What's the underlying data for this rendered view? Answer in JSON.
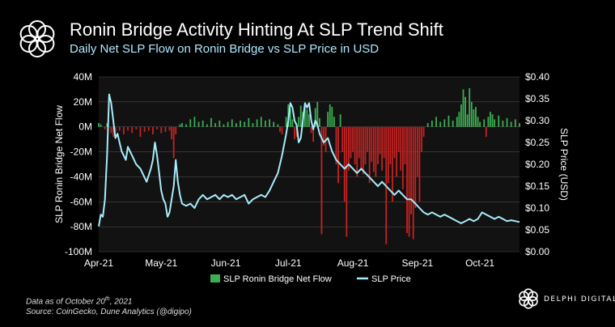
{
  "header": {
    "title": "Ronin Bridge Activity Hinting At SLP Trend Shift",
    "subtitle": "Daily Net SLP Flow on Ronin Bridge vs SLP Price in USD"
  },
  "footer": {
    "note_prefix": "Data as of October 20",
    "note_sup": "th",
    "note_suffix": ", 2021",
    "source": "Source: CoinGecko, Dune Analytics (@digipo)"
  },
  "brand": {
    "name": "DELPHI DIGITAL",
    "logo_icon": "flower-logo-icon"
  },
  "colors": {
    "background": "#000000",
    "inflow": "#3cae52",
    "outflow": "#c62222",
    "price": "#a8ecfa",
    "grid": "#4a4a4a",
    "plot_bg": "#121212",
    "subtitle": "#aee9ff"
  },
  "chart_data": {
    "type": "bar+line",
    "x_ticks": [
      "Apr-21",
      "May-21",
      "Jun-21",
      "Jul-21",
      "Aug-21",
      "Sep-21",
      "Oct-21"
    ],
    "x_range": [
      "2021-04-01",
      "2021-10-20"
    ],
    "y_left": {
      "label": "SLP Ronin Bridge Net Flow",
      "ticks": [
        "40M",
        "20M",
        "0M",
        "-20M",
        "-40M",
        "-60M",
        "-80M",
        "-100M"
      ],
      "range": [
        -100,
        40
      ],
      "unit": "M"
    },
    "y_right": {
      "label": "SLP Price (USD)",
      "ticks": [
        "$0.40",
        "$0.35",
        "$0.30",
        "$0.25",
        "$0.20",
        "$0.15",
        "$0.10",
        "$0.05",
        "$0.00"
      ],
      "range": [
        0,
        0.4
      ]
    },
    "legend": {
      "position": "bottom-center",
      "bar_label": "SLP Ronin Bridge Net Flow",
      "line_label": "SLP Price"
    },
    "series": [
      {
        "name": "SLP Ronin Bridge Net Flow",
        "type": "bar",
        "axis": "left",
        "points": [
          [
            "2021-04-01",
            3
          ],
          [
            "2021-04-02",
            2
          ],
          [
            "2021-04-04",
            -2
          ],
          [
            "2021-04-05",
            3
          ],
          [
            "2021-04-07",
            -5
          ],
          [
            "2021-04-08",
            -8
          ],
          [
            "2021-04-09",
            -4
          ],
          [
            "2021-04-11",
            -3
          ],
          [
            "2021-04-13",
            -6
          ],
          [
            "2021-04-15",
            -3
          ],
          [
            "2021-04-17",
            -5
          ],
          [
            "2021-04-19",
            -2
          ],
          [
            "2021-04-21",
            -8
          ],
          [
            "2021-04-23",
            -4
          ],
          [
            "2021-04-25",
            -3
          ],
          [
            "2021-04-27",
            -6
          ],
          [
            "2021-04-29",
            -2
          ],
          [
            "2021-05-01",
            -5
          ],
          [
            "2021-05-03",
            -4
          ],
          [
            "2021-05-05",
            -3
          ],
          [
            "2021-05-06",
            -10
          ],
          [
            "2021-05-07",
            -25
          ],
          [
            "2021-05-08",
            -6
          ],
          [
            "2021-05-10",
            2
          ],
          [
            "2021-05-11",
            3
          ],
          [
            "2021-05-13",
            2
          ],
          [
            "2021-05-15",
            6
          ],
          [
            "2021-05-17",
            8
          ],
          [
            "2021-05-19",
            4
          ],
          [
            "2021-05-21",
            5
          ],
          [
            "2021-05-23",
            2
          ],
          [
            "2021-05-25",
            7
          ],
          [
            "2021-05-27",
            3
          ],
          [
            "2021-05-29",
            5
          ],
          [
            "2021-05-31",
            2
          ],
          [
            "2021-06-02",
            4
          ],
          [
            "2021-06-04",
            6
          ],
          [
            "2021-06-06",
            3
          ],
          [
            "2021-06-08",
            5
          ],
          [
            "2021-06-10",
            4
          ],
          [
            "2021-06-12",
            7
          ],
          [
            "2021-06-14",
            3
          ],
          [
            "2021-06-16",
            6
          ],
          [
            "2021-06-18",
            8
          ],
          [
            "2021-06-20",
            5
          ],
          [
            "2021-06-22",
            6
          ],
          [
            "2021-06-24",
            4
          ],
          [
            "2021-06-26",
            2
          ],
          [
            "2021-06-27",
            -4
          ],
          [
            "2021-06-28",
            -6
          ],
          [
            "2021-06-30",
            8
          ],
          [
            "2021-07-01",
            18
          ],
          [
            "2021-07-02",
            14
          ],
          [
            "2021-07-03",
            6
          ],
          [
            "2021-07-04",
            -10
          ],
          [
            "2021-07-05",
            -8
          ],
          [
            "2021-07-06",
            8
          ],
          [
            "2021-07-07",
            17
          ],
          [
            "2021-07-08",
            12
          ],
          [
            "2021-07-09",
            19
          ],
          [
            "2021-07-10",
            14
          ],
          [
            "2021-07-11",
            10
          ],
          [
            "2021-07-12",
            -5
          ],
          [
            "2021-07-13",
            -12
          ],
          [
            "2021-07-14",
            15
          ],
          [
            "2021-07-15",
            20
          ],
          [
            "2021-07-16",
            7
          ],
          [
            "2021-07-17",
            -86
          ],
          [
            "2021-07-18",
            -15
          ],
          [
            "2021-07-19",
            -20
          ],
          [
            "2021-07-20",
            12
          ],
          [
            "2021-07-21",
            18
          ],
          [
            "2021-07-22",
            16
          ],
          [
            "2021-07-23",
            8
          ],
          [
            "2021-07-24",
            -30
          ],
          [
            "2021-07-25",
            -45
          ],
          [
            "2021-07-26",
            10
          ],
          [
            "2021-07-27",
            -20
          ],
          [
            "2021-07-28",
            -60
          ],
          [
            "2021-07-29",
            -88
          ],
          [
            "2021-07-30",
            -35
          ],
          [
            "2021-07-31",
            -25
          ],
          [
            "2021-08-01",
            -20
          ],
          [
            "2021-08-02",
            -30
          ],
          [
            "2021-08-03",
            -40
          ],
          [
            "2021-08-04",
            -25
          ],
          [
            "2021-08-05",
            -35
          ],
          [
            "2021-08-06",
            -38
          ],
          [
            "2021-08-07",
            -30
          ],
          [
            "2021-08-08",
            -20
          ],
          [
            "2021-08-09",
            -45
          ],
          [
            "2021-08-10",
            -28
          ],
          [
            "2021-08-11",
            -36
          ],
          [
            "2021-08-12",
            -40
          ],
          [
            "2021-08-13",
            -30
          ],
          [
            "2021-08-14",
            -22
          ],
          [
            "2021-08-15",
            -35
          ],
          [
            "2021-08-16",
            -25
          ],
          [
            "2021-08-17",
            -94
          ],
          [
            "2021-08-18",
            -45
          ],
          [
            "2021-08-19",
            -30
          ],
          [
            "2021-08-20",
            -60
          ],
          [
            "2021-08-21",
            -25
          ],
          [
            "2021-08-22",
            -40
          ],
          [
            "2021-08-23",
            -20
          ],
          [
            "2021-08-24",
            -35
          ],
          [
            "2021-08-25",
            -50
          ],
          [
            "2021-08-26",
            -30
          ],
          [
            "2021-08-27",
            -85
          ],
          [
            "2021-08-28",
            -88
          ],
          [
            "2021-08-29",
            -70
          ],
          [
            "2021-08-30",
            -90
          ],
          [
            "2021-08-31",
            -65
          ],
          [
            "2021-09-01",
            -40
          ],
          [
            "2021-09-02",
            -60
          ],
          [
            "2021-09-03",
            -20
          ],
          [
            "2021-09-04",
            -8
          ],
          [
            "2021-09-06",
            3
          ],
          [
            "2021-09-08",
            5
          ],
          [
            "2021-09-10",
            8
          ],
          [
            "2021-09-12",
            4
          ],
          [
            "2021-09-14",
            6
          ],
          [
            "2021-09-16",
            9
          ],
          [
            "2021-09-18",
            5
          ],
          [
            "2021-09-20",
            8
          ],
          [
            "2021-09-21",
            12
          ],
          [
            "2021-09-22",
            18
          ],
          [
            "2021-09-23",
            30
          ],
          [
            "2021-09-24",
            24
          ],
          [
            "2021-09-25",
            10
          ],
          [
            "2021-09-26",
            31
          ],
          [
            "2021-09-27",
            20
          ],
          [
            "2021-09-28",
            14
          ],
          [
            "2021-09-29",
            16
          ],
          [
            "2021-09-30",
            8
          ],
          [
            "2021-10-01",
            4
          ],
          [
            "2021-10-03",
            6
          ],
          [
            "2021-10-04",
            -8
          ],
          [
            "2021-10-05",
            8
          ],
          [
            "2021-10-06",
            12
          ],
          [
            "2021-10-07",
            10
          ],
          [
            "2021-10-08",
            6
          ],
          [
            "2021-10-10",
            9
          ],
          [
            "2021-10-12",
            5
          ],
          [
            "2021-10-14",
            7
          ],
          [
            "2021-10-16",
            4
          ],
          [
            "2021-10-18",
            6
          ],
          [
            "2021-10-20",
            3
          ]
        ]
      },
      {
        "name": "SLP Price",
        "type": "line",
        "axis": "right",
        "points": [
          [
            "2021-04-01",
            0.058
          ],
          [
            "2021-04-02",
            0.085
          ],
          [
            "2021-04-03",
            0.08
          ],
          [
            "2021-04-04",
            0.12
          ],
          [
            "2021-04-05",
            0.22
          ],
          [
            "2021-04-06",
            0.36
          ],
          [
            "2021-04-07",
            0.34
          ],
          [
            "2021-04-08",
            0.3
          ],
          [
            "2021-04-09",
            0.26
          ],
          [
            "2021-04-10",
            0.27
          ],
          [
            "2021-04-12",
            0.23
          ],
          [
            "2021-04-14",
            0.21
          ],
          [
            "2021-04-15",
            0.24
          ],
          [
            "2021-04-17",
            0.22
          ],
          [
            "2021-04-19",
            0.2
          ],
          [
            "2021-04-21",
            0.19
          ],
          [
            "2021-04-23",
            0.17
          ],
          [
            "2021-04-24",
            0.16
          ],
          [
            "2021-04-26",
            0.19
          ],
          [
            "2021-04-27",
            0.21
          ],
          [
            "2021-04-28",
            0.25
          ],
          [
            "2021-04-29",
            0.22
          ],
          [
            "2021-04-30",
            0.18
          ],
          [
            "2021-05-01",
            0.14
          ],
          [
            "2021-05-02",
            0.12
          ],
          [
            "2021-05-03",
            0.11
          ],
          [
            "2021-05-04",
            0.08
          ],
          [
            "2021-05-05",
            0.09
          ],
          [
            "2021-05-06",
            0.12
          ],
          [
            "2021-05-07",
            0.15
          ],
          [
            "2021-05-08",
            0.21
          ],
          [
            "2021-05-09",
            0.16
          ],
          [
            "2021-05-10",
            0.13
          ],
          [
            "2021-05-11",
            0.11
          ],
          [
            "2021-05-13",
            0.105
          ],
          [
            "2021-05-15",
            0.11
          ],
          [
            "2021-05-17",
            0.1
          ],
          [
            "2021-05-19",
            0.12
          ],
          [
            "2021-05-21",
            0.13
          ],
          [
            "2021-05-23",
            0.12
          ],
          [
            "2021-05-25",
            0.125
          ],
          [
            "2021-05-27",
            0.13
          ],
          [
            "2021-05-29",
            0.12
          ],
          [
            "2021-05-31",
            0.13
          ],
          [
            "2021-06-02",
            0.125
          ],
          [
            "2021-06-04",
            0.13
          ],
          [
            "2021-06-06",
            0.12
          ],
          [
            "2021-06-08",
            0.125
          ],
          [
            "2021-06-10",
            0.13
          ],
          [
            "2021-06-12",
            0.11
          ],
          [
            "2021-06-14",
            0.12
          ],
          [
            "2021-06-16",
            0.125
          ],
          [
            "2021-06-18",
            0.13
          ],
          [
            "2021-06-20",
            0.125
          ],
          [
            "2021-06-22",
            0.14
          ],
          [
            "2021-06-24",
            0.16
          ],
          [
            "2021-06-26",
            0.18
          ],
          [
            "2021-06-28",
            0.22
          ],
          [
            "2021-06-30",
            0.27
          ],
          [
            "2021-07-01",
            0.3
          ],
          [
            "2021-07-02",
            0.34
          ],
          [
            "2021-07-03",
            0.33
          ],
          [
            "2021-07-04",
            0.3
          ],
          [
            "2021-07-05",
            0.29
          ],
          [
            "2021-07-06",
            0.25
          ],
          [
            "2021-07-07",
            0.26
          ],
          [
            "2021-07-08",
            0.3
          ],
          [
            "2021-07-09",
            0.34
          ],
          [
            "2021-07-10",
            0.33
          ],
          [
            "2021-07-11",
            0.34
          ],
          [
            "2021-07-12",
            0.3
          ],
          [
            "2021-07-13",
            0.28
          ],
          [
            "2021-07-14",
            0.3
          ],
          [
            "2021-07-15",
            0.29
          ],
          [
            "2021-07-16",
            0.27
          ],
          [
            "2021-07-18",
            0.25
          ],
          [
            "2021-07-20",
            0.26
          ],
          [
            "2021-07-22",
            0.23
          ],
          [
            "2021-07-24",
            0.21
          ],
          [
            "2021-07-26",
            0.2
          ],
          [
            "2021-07-28",
            0.19
          ],
          [
            "2021-07-30",
            0.2
          ],
          [
            "2021-08-01",
            0.19
          ],
          [
            "2021-08-03",
            0.18
          ],
          [
            "2021-08-05",
            0.19
          ],
          [
            "2021-08-07",
            0.18
          ],
          [
            "2021-08-09",
            0.17
          ],
          [
            "2021-08-11",
            0.16
          ],
          [
            "2021-08-13",
            0.15
          ],
          [
            "2021-08-15",
            0.16
          ],
          [
            "2021-08-17",
            0.15
          ],
          [
            "2021-08-19",
            0.14
          ],
          [
            "2021-08-21",
            0.13
          ],
          [
            "2021-08-23",
            0.14
          ],
          [
            "2021-08-25",
            0.13
          ],
          [
            "2021-08-27",
            0.12
          ],
          [
            "2021-08-29",
            0.12
          ],
          [
            "2021-08-31",
            0.11
          ],
          [
            "2021-09-02",
            0.1
          ],
          [
            "2021-09-04",
            0.09
          ],
          [
            "2021-09-06",
            0.085
          ],
          [
            "2021-09-08",
            0.09
          ],
          [
            "2021-09-10",
            0.085
          ],
          [
            "2021-09-12",
            0.08
          ],
          [
            "2021-09-14",
            0.085
          ],
          [
            "2021-09-16",
            0.08
          ],
          [
            "2021-09-18",
            0.075
          ],
          [
            "2021-09-20",
            0.07
          ],
          [
            "2021-09-22",
            0.065
          ],
          [
            "2021-09-24",
            0.07
          ],
          [
            "2021-09-26",
            0.075
          ],
          [
            "2021-09-28",
            0.07
          ],
          [
            "2021-09-30",
            0.075
          ],
          [
            "2021-10-02",
            0.09
          ],
          [
            "2021-10-04",
            0.085
          ],
          [
            "2021-10-06",
            0.08
          ],
          [
            "2021-10-08",
            0.075
          ],
          [
            "2021-10-10",
            0.08
          ],
          [
            "2021-10-12",
            0.075
          ],
          [
            "2021-10-14",
            0.07
          ],
          [
            "2021-10-16",
            0.072
          ],
          [
            "2021-10-18",
            0.07
          ],
          [
            "2021-10-20",
            0.068
          ]
        ]
      }
    ]
  }
}
